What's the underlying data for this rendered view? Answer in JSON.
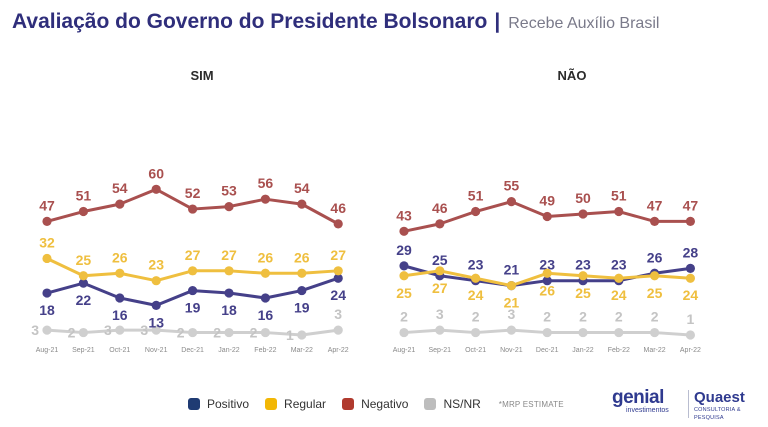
{
  "header": {
    "title": "Avaliação do Governo do Presidente Bolsonaro",
    "separator": "|",
    "subtitle": "Recebe Auxílio Brasil"
  },
  "legend": {
    "items": [
      {
        "label": "Positivo",
        "color": "#1f3b73"
      },
      {
        "label": "Regular",
        "color": "#f2b705"
      },
      {
        "label": "Negativo",
        "color": "#b03a2e"
      },
      {
        "label": "NS/NR",
        "color": "#bdbdbd"
      }
    ],
    "note": "*MRP ESTIMATE"
  },
  "logos": {
    "genial": {
      "word": "genial",
      "sub": "investimentos"
    },
    "quaest": {
      "word": "Quaest",
      "sub": "CONSULTORIA & PESQUISA"
    }
  },
  "series_colors": {
    "Negativo": "#a9504f",
    "Regular": "#efbf3f",
    "Positivo": "#454089",
    "NS/NR": "#cfcfcf",
    "NS/NR label": "#c4c4c4"
  },
  "chart_data": [
    {
      "type": "line",
      "title": "SIM",
      "x": [
        "Aug-21",
        "Sep-21",
        "Oct-21",
        "Nov-21",
        "Dec-21",
        "Jan-22",
        "Feb-22",
        "Mar-22",
        "Apr-22"
      ],
      "series": [
        {
          "name": "Negativo",
          "values": [
            47,
            51,
            54,
            60,
            52,
            53,
            56,
            54,
            46
          ]
        },
        {
          "name": "Regular",
          "values": [
            32,
            25,
            26,
            23,
            27,
            27,
            26,
            26,
            27
          ]
        },
        {
          "name": "Positivo",
          "values": [
            18,
            22,
            16,
            13,
            19,
            18,
            16,
            19,
            24
          ]
        },
        {
          "name": "NS/NR",
          "values": [
            3,
            2,
            3,
            3,
            2,
            2,
            2,
            1,
            3
          ]
        }
      ],
      "legend": "bottom",
      "grid": false
    },
    {
      "type": "line",
      "title": "NÃO",
      "x": [
        "Aug-21",
        "Sep-21",
        "Oct-21",
        "Nov-21",
        "Dec-21",
        "Jan-22",
        "Feb-22",
        "Mar-22",
        "Apr-22"
      ],
      "series": [
        {
          "name": "Negativo",
          "values": [
            43,
            46,
            51,
            55,
            49,
            50,
            51,
            47,
            47
          ]
        },
        {
          "name": "Regular",
          "values": [
            25,
            27,
            24,
            21,
            26,
            25,
            24,
            25,
            24
          ]
        },
        {
          "name": "Positivo",
          "values": [
            29,
            25,
            23,
            21,
            23,
            23,
            23,
            26,
            28
          ]
        },
        {
          "name": "NS/NR",
          "values": [
            2,
            3,
            2,
            3,
            2,
            2,
            2,
            2,
            1
          ]
        }
      ],
      "legend": "bottom",
      "grid": false
    }
  ]
}
